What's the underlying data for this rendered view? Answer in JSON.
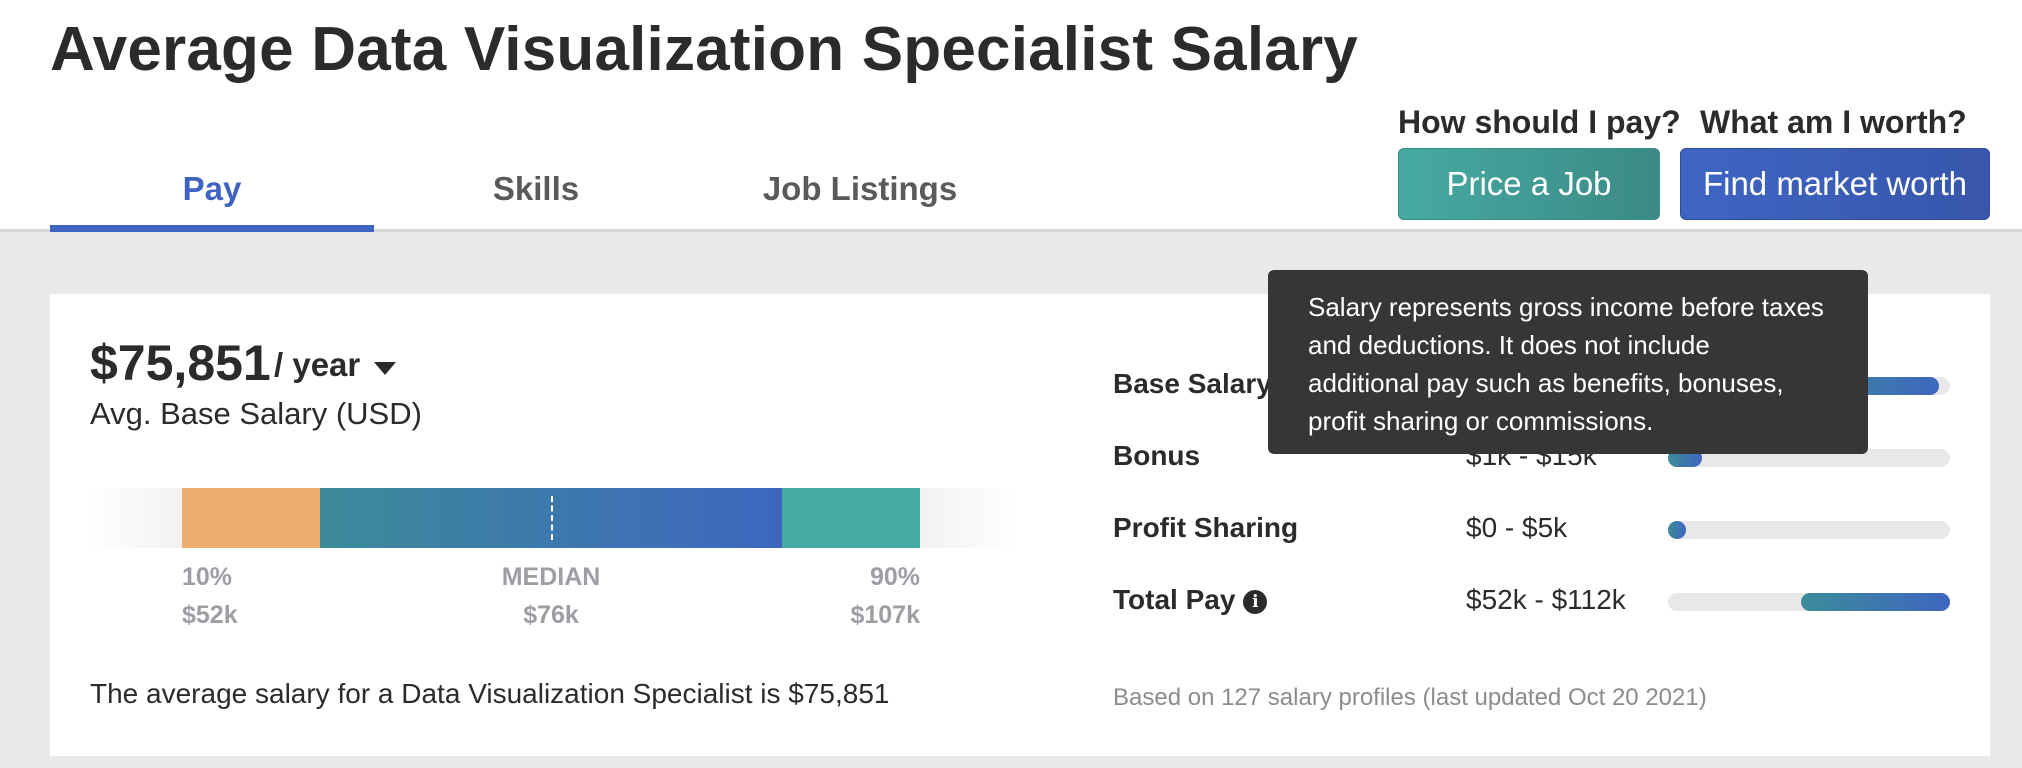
{
  "page": {
    "title": "Average Data Visualization Specialist Salary"
  },
  "tabs": [
    {
      "label": "Pay",
      "active": true
    },
    {
      "label": "Skills",
      "active": false
    },
    {
      "label": "Job Listings",
      "active": false
    }
  ],
  "cta": {
    "pay_question": "How should I pay?",
    "price_job_label": "Price a Job",
    "worth_question": "What am I worth?",
    "market_worth_label": "Find market worth"
  },
  "salary": {
    "amount": "$75,851",
    "period": "/ year",
    "subtitle": "Avg. Base Salary (USD)",
    "percentiles": {
      "low_label": "10%",
      "low_value": "$52k",
      "median_label": "MEDIAN",
      "median_value": "$76k",
      "high_label": "90%",
      "high_value": "$107k"
    },
    "summary": "The average salary for a Data Visualization Specialist is $75,851"
  },
  "pay_breakdown": [
    {
      "label": "Base Salary",
      "range": "",
      "info": true,
      "fill_start": 0.47,
      "fill_end": 0.96
    },
    {
      "label": "Bonus",
      "range": "$1k - $15k",
      "info": false,
      "fill_start": 0.0,
      "fill_end": 0.12
    },
    {
      "label": "Profit Sharing",
      "range": "$0 - $5k",
      "info": false,
      "fill_start": 0.0,
      "fill_end": 0.05
    },
    {
      "label": "Total Pay",
      "range": "$52k - $112k",
      "info": true,
      "fill_start": 0.47,
      "fill_end": 1.0
    }
  ],
  "footnote": "Based on 127 salary profiles (last updated Oct 20 2021)",
  "tooltip": {
    "text": "Salary represents gross income before taxes and deductions. It does not include additional pay such as benefits, bonuses, profit sharing or commissions."
  },
  "icons": {
    "info": "info-icon",
    "caret": "caret-down-icon"
  },
  "colors": {
    "accent_blue": "#3e63c0",
    "teal": "#47a9a3",
    "orange": "#efad72",
    "tooltip_bg": "#363636"
  }
}
